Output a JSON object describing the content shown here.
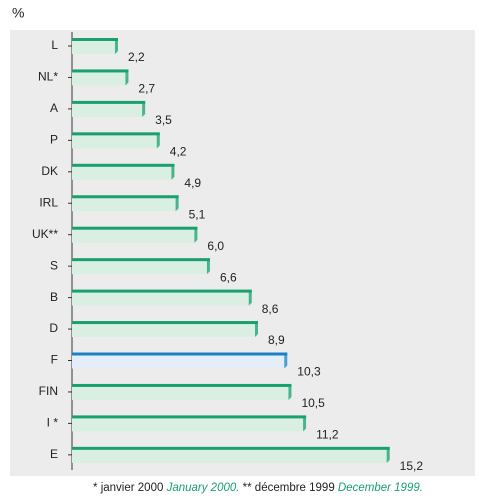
{
  "chart_data": {
    "type": "bar",
    "orientation": "horizontal",
    "unit_label": "%",
    "categories": [
      "L",
      "NL*",
      "A",
      "P",
      "DK",
      "IRL",
      "UK**",
      "S",
      "B",
      "D",
      "F",
      "FIN",
      "I *",
      "E"
    ],
    "values": [
      2.2,
      2.7,
      3.5,
      4.2,
      4.9,
      5.1,
      6.0,
      6.6,
      8.6,
      8.9,
      10.3,
      10.5,
      11.2,
      15.2
    ],
    "value_labels": [
      "2,2",
      "2,7",
      "3,5",
      "4,2",
      "4,9",
      "5,1",
      "6,0",
      "6,6",
      "8,6",
      "8,9",
      "10,3",
      "10,5",
      "11,2",
      "15,2"
    ],
    "colors": [
      "#1aa06e",
      "#1aa06e",
      "#1aa06e",
      "#1aa06e",
      "#1aa06e",
      "#1aa06e",
      "#1aa06e",
      "#1aa06e",
      "#1aa06e",
      "#1aa06e",
      "#1a82c4",
      "#1aa06e",
      "#1aa06e",
      "#1aa06e"
    ],
    "footnote": [
      "* janvier 2000",
      "January 2000.",
      "** décembre 1999",
      "December 1999."
    ]
  }
}
